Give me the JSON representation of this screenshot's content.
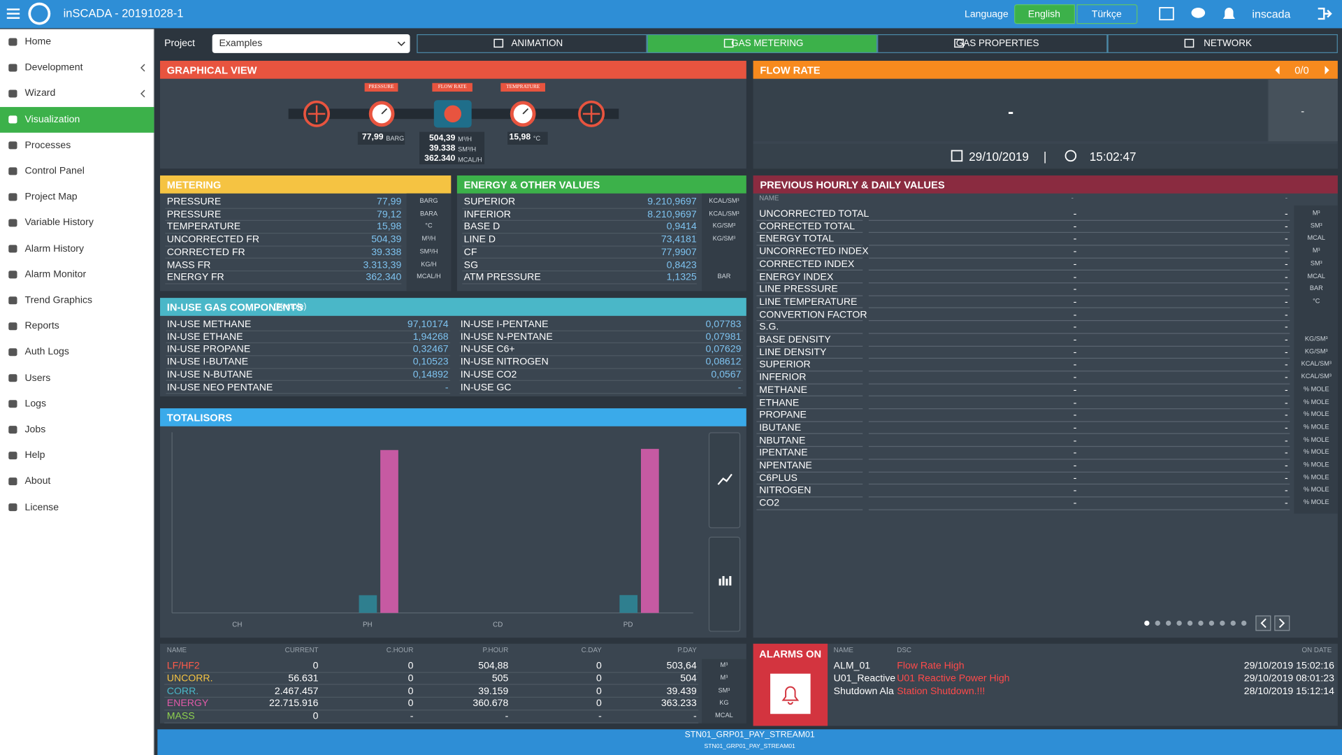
{
  "header": {
    "title": "inSCADA - 20191028-1",
    "language_label": "Language",
    "languages": [
      {
        "label": "English",
        "active": true
      },
      {
        "label": "Türkçe",
        "active": false
      }
    ],
    "user": "inscada"
  },
  "sidebar": {
    "items": [
      {
        "label": "Home"
      },
      {
        "label": "Development",
        "submenu": true
      },
      {
        "label": "Wizard",
        "submenu": true
      },
      {
        "label": "Visualization",
        "active": true
      },
      {
        "label": "Processes"
      },
      {
        "label": "Control Panel"
      },
      {
        "label": "Project Map"
      },
      {
        "label": "Variable History"
      },
      {
        "label": "Alarm History"
      },
      {
        "label": "Alarm Monitor"
      },
      {
        "label": "Trend Graphics"
      },
      {
        "label": "Reports"
      },
      {
        "label": "Auth Logs"
      },
      {
        "label": "Users"
      },
      {
        "label": "Logs"
      },
      {
        "label": "Jobs"
      },
      {
        "label": "Help"
      },
      {
        "label": "About"
      },
      {
        "label": "License"
      }
    ]
  },
  "toolbar": {
    "project_label": "Project",
    "project": "Examples",
    "tabs": [
      {
        "label": "ANIMATION"
      },
      {
        "label": "GAS METERING",
        "active": true
      },
      {
        "label": "GAS PROPERTIES"
      },
      {
        "label": "NETWORK"
      }
    ]
  },
  "graphical_view": {
    "title": "GRAPHICAL VIEW",
    "pressure": {
      "tag": "PRESSURE",
      "value": "77,99",
      "unit": "BARG"
    },
    "flow": {
      "tag": "FLOW RATE",
      "lines": [
        {
          "value": "504,39",
          "unit": "M³/H"
        },
        {
          "value": "39.338",
          "unit": "SM³/H"
        },
        {
          "value": "362.340",
          "unit": "MCAL/H"
        }
      ]
    },
    "temperature": {
      "tag": "TEMPRATURE",
      "value": "15,98",
      "unit": "°C"
    }
  },
  "flow_rate": {
    "title": "FLOW RATE",
    "pager": "0/0",
    "value": "-",
    "side_value": "-",
    "date": "29/10/2019",
    "separator": "|",
    "time": "15:02:47"
  },
  "metering": {
    "title": "METERING",
    "rows": [
      {
        "name": "PRESSURE",
        "value": "77,99",
        "unit": "BARG"
      },
      {
        "name": "PRESSURE",
        "value": "79,12",
        "unit": "BARA"
      },
      {
        "name": "TEMPERATURE",
        "value": "15,98",
        "unit": "°C"
      },
      {
        "name": "UNCORRECTED FR",
        "value": "504,39",
        "unit": "M³/H"
      },
      {
        "name": "CORRECTED FR",
        "value": "39.338",
        "unit": "SM³/H"
      },
      {
        "name": "MASS FR",
        "value": "3.313,39",
        "unit": "KG/H"
      },
      {
        "name": "ENERGY FR",
        "value": "362.340",
        "unit": "MCAL/H"
      }
    ]
  },
  "energy": {
    "title": "ENERGY & OTHER VALUES",
    "rows": [
      {
        "name": "SUPERIOR",
        "value": "9.210,9697",
        "unit": "KCAL/SM³"
      },
      {
        "name": "INFERIOR",
        "value": "8.210,9697",
        "unit": "KCAL/SM³"
      },
      {
        "name": "BASE D",
        "value": "0,9414",
        "unit": "KG/SM³"
      },
      {
        "name": "LINE D",
        "value": "73,4181",
        "unit": "KG/SM³"
      },
      {
        "name": "CF",
        "value": "77,9907"
      },
      {
        "name": "SG",
        "value": "0,8423"
      },
      {
        "name": "ATM PRESSURE",
        "value": "1,1325",
        "unit": "BAR"
      }
    ]
  },
  "gas_components": {
    "title": "IN-USE GAS COMPONENTS",
    "subtitle": "(% mole)",
    "left": [
      {
        "name": "IN-USE METHANE",
        "value": "97,10174"
      },
      {
        "name": "IN-USE ETHANE",
        "value": "1,94268"
      },
      {
        "name": "IN-USE PROPANE",
        "value": "0,32467"
      },
      {
        "name": "IN-USE I-BUTANE",
        "value": "0,10523"
      },
      {
        "name": "IN-USE N-BUTANE",
        "value": "0,14892"
      },
      {
        "name": "IN-USE NEO PENTANE",
        "value": "-"
      }
    ],
    "right": [
      {
        "name": "IN-USE I-PENTANE",
        "value": "0,07783"
      },
      {
        "name": "IN-USE N-PENTANE",
        "value": "0,07981"
      },
      {
        "name": "IN-USE C6+",
        "value": "0,07629"
      },
      {
        "name": "IN-USE NITROGEN",
        "value": "0,08612"
      },
      {
        "name": "IN-USE CO2",
        "value": "0,0567"
      },
      {
        "name": "IN-USE GC",
        "value": "-"
      }
    ]
  },
  "totalisors": {
    "title": "TOTALISORS",
    "columns": [
      "NAME",
      "CURRENT",
      "C.HOUR",
      "P.HOUR",
      "C.DAY",
      "P.DAY"
    ],
    "rows": [
      {
        "name": "LF/HF2",
        "color": "#ff5a4a",
        "values": [
          "0",
          "0",
          "504,88",
          "0",
          "503,64"
        ],
        "unit": "M³"
      },
      {
        "name": "UNCORR.",
        "color": "#f5c342",
        "values": [
          "56.631",
          "0",
          "505",
          "0",
          "504"
        ],
        "unit": "M³"
      },
      {
        "name": "CORR.",
        "color": "#4ab7c8",
        "values": [
          "2.467.457",
          "0",
          "39.159",
          "0",
          "39.439"
        ],
        "unit": "SM³"
      },
      {
        "name": "ENERGY",
        "color": "#e05aa8",
        "values": [
          "22.715.916",
          "0",
          "360.678",
          "0",
          "363.233"
        ],
        "unit": "KG"
      },
      {
        "name": "MASS",
        "color": "#8fd14f",
        "values": [
          "0",
          "-",
          "-",
          "-",
          "-"
        ],
        "unit": "MCAL"
      }
    ]
  },
  "chart_data": {
    "type": "bar",
    "categories": [
      "CH",
      "PH",
      "CD",
      "PD"
    ],
    "series": [
      {
        "color": "#2f7f8f",
        "values": [
          0,
          39159,
          0,
          39439
        ]
      },
      {
        "color": "#c65aa2",
        "values": [
          0,
          360678,
          0,
          363233
        ]
      }
    ],
    "ylim": [
      0,
      400000
    ]
  },
  "previous": {
    "title": "PREVIOUS HOURLY & DAILY VALUES",
    "columns": [
      "NAME",
      "-",
      "-"
    ],
    "rows": [
      {
        "name": "UNCORRECTED TOTAL",
        "values": [
          "-",
          "-"
        ],
        "unit": "M³"
      },
      {
        "name": "CORRECTED TOTAL",
        "values": [
          "-",
          "-"
        ],
        "unit": "SM³"
      },
      {
        "name": "ENERGY TOTAL",
        "values": [
          "-",
          "-"
        ],
        "unit": "MCAL"
      },
      {
        "name": "UNCORRECTED INDEX",
        "values": [
          "-",
          "-"
        ],
        "unit": "M³"
      },
      {
        "name": "CORRECTED INDEX",
        "values": [
          "-",
          "-"
        ],
        "unit": "SM³"
      },
      {
        "name": "ENERGY INDEX",
        "values": [
          "-",
          "-"
        ],
        "unit": "MCAL"
      },
      {
        "name": "LINE PRESSURE",
        "values": [
          "-",
          "-"
        ],
        "unit": "BAR"
      },
      {
        "name": "LINE TEMPERATURE",
        "values": [
          "-",
          "-"
        ],
        "unit": "°C"
      },
      {
        "name": "CONVERTION FACTOR",
        "values": [
          "-",
          "-"
        ]
      },
      {
        "name": "S.G.",
        "values": [
          "-",
          "-"
        ]
      },
      {
        "name": "BASE DENSITY",
        "values": [
          "-",
          "-"
        ],
        "unit": "KG/SM³"
      },
      {
        "name": "LINE DENSITY",
        "values": [
          "-",
          "-"
        ],
        "unit": "KG/SM³"
      },
      {
        "name": "SUPERIOR",
        "values": [
          "-",
          "-"
        ],
        "unit": "KCAL/SM³"
      },
      {
        "name": "INFERIOR",
        "values": [
          "-",
          "-"
        ],
        "unit": "KCAL/SM³"
      },
      {
        "name": "METHANE",
        "values": [
          "-",
          "-"
        ],
        "unit": "% MOLE"
      },
      {
        "name": "ETHANE",
        "values": [
          "-",
          "-"
        ],
        "unit": "% MOLE"
      },
      {
        "name": "PROPANE",
        "values": [
          "-",
          "-"
        ],
        "unit": "% MOLE"
      },
      {
        "name": "IBUTANE",
        "values": [
          "-",
          "-"
        ],
        "unit": "% MOLE"
      },
      {
        "name": "NBUTANE",
        "values": [
          "-",
          "-"
        ],
        "unit": "% MOLE"
      },
      {
        "name": "IPENTANE",
        "values": [
          "-",
          "-"
        ],
        "unit": "% MOLE"
      },
      {
        "name": "NPENTANE",
        "values": [
          "-",
          "-"
        ],
        "unit": "% MOLE"
      },
      {
        "name": "C6PLUS",
        "values": [
          "-",
          "-"
        ],
        "unit": "% MOLE"
      },
      {
        "name": "NITROGEN",
        "values": [
          "-",
          "-"
        ],
        "unit": "% MOLE"
      },
      {
        "name": "CO2",
        "values": [
          "-",
          "-"
        ],
        "unit": "% MOLE"
      }
    ]
  },
  "alarms": {
    "title": "ALARMS ON",
    "columns": [
      "NAME",
      "DSC",
      "ON DATE"
    ],
    "rows": [
      {
        "name": "ALM_01",
        "dsc": "Flow Rate High",
        "date": "29/10/2019 15:02:16"
      },
      {
        "name": "U01_Reactive_",
        "dsc": "U01 Reactive Power High",
        "date": "29/10/2019 08:01:23"
      },
      {
        "name": "Shutdown Ala",
        "dsc": "Station Shutdown.!!!",
        "date": "28/10/2019 15:12:14"
      }
    ]
  },
  "footer": {
    "line1": "STN01_GRP01_PAY_STREAM01",
    "line2": "STN01_GRP01_PAY_STREAM01"
  }
}
